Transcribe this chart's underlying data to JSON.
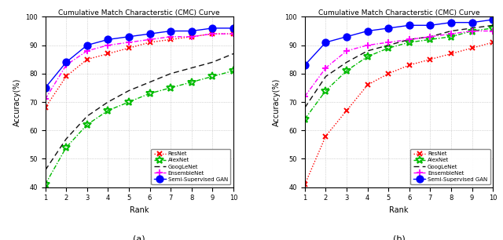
{
  "title": "Cumulative Match Characterstic (CMC) Curve",
  "xlabel": "Rank",
  "ylabel": "Accuracy(%)",
  "ranks": [
    1,
    2,
    3,
    4,
    5,
    6,
    7,
    8,
    9,
    10
  ],
  "ylim": [
    40,
    100
  ],
  "yticks": [
    40,
    50,
    60,
    70,
    80,
    90,
    100
  ],
  "subplot_a": {
    "label": "(a)",
    "ResNet": [
      68,
      79,
      85,
      87,
      89,
      91,
      92,
      93,
      94,
      94
    ],
    "AlexNet": [
      41,
      54,
      62,
      67,
      70,
      73,
      75,
      77,
      79,
      81
    ],
    "GoogLeNet": [
      46,
      57,
      65,
      70,
      74,
      77,
      80,
      82,
      84,
      87
    ],
    "EnsembleNet": [
      71,
      83,
      88,
      90,
      91,
      92,
      93,
      93,
      94,
      94
    ],
    "SemiSupervisedGAN": [
      75,
      84,
      90,
      92,
      93,
      94,
      95,
      95,
      96,
      96
    ]
  },
  "subplot_b": {
    "label": "(b)",
    "ResNet": [
      41,
      58,
      67,
      76,
      80,
      83,
      85,
      87,
      89,
      91
    ],
    "AlexNet": [
      64,
      74,
      81,
      86,
      89,
      91,
      92,
      93,
      95,
      96
    ],
    "GoogLeNet": [
      68,
      79,
      84,
      88,
      90,
      92,
      93,
      95,
      96,
      97
    ],
    "EnsembleNet": [
      72,
      82,
      88,
      90,
      91,
      92,
      93,
      94,
      95,
      95
    ],
    "SemiSupervisedGAN": [
      83,
      91,
      93,
      95,
      96,
      97,
      97,
      98,
      98,
      99
    ]
  },
  "colors": {
    "ResNet": "#ff0000",
    "AlexNet": "#00bb00",
    "GoogLeNet": "#111111",
    "EnsembleNet": "#ff00ff",
    "SemiSupervisedGAN": "#0000ff"
  },
  "linestyles": {
    "ResNet": "dotted",
    "AlexNet": "dashdot",
    "GoogLeNet": "dashed",
    "EnsembleNet": "dashdot",
    "SemiSupervisedGAN": "solid"
  },
  "markers": {
    "ResNet": "x",
    "AlexNet": "*",
    "GoogLeNet": null,
    "EnsembleNet": "+",
    "SemiSupervisedGAN": "o"
  },
  "markersizes": {
    "ResNet": 5,
    "AlexNet": 7,
    "GoogLeNet": 0,
    "EnsembleNet": 6,
    "SemiSupervisedGAN": 6
  },
  "legend_labels": [
    "ResNet",
    "AlexNet",
    "GoogLeNet",
    "EnsembleNet",
    "Semi-Supervised GAN"
  ]
}
